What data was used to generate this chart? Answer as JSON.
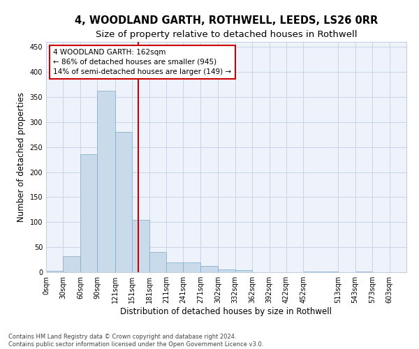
{
  "title": "4, WOODLAND GARTH, ROTHWELL, LEEDS, LS26 0RR",
  "subtitle": "Size of property relative to detached houses in Rothwell",
  "xlabel": "Distribution of detached houses by size in Rothwell",
  "ylabel": "Number of detached properties",
  "bar_color": "#c9daea",
  "bar_edge_color": "#7aaac8",
  "background_color": "#eef2fb",
  "grid_color": "#c5cfe0",
  "vline_x": 162,
  "vline_color": "#cc0000",
  "annotation_line1": "4 WOODLAND GARTH: 162sqm",
  "annotation_line2": "← 86% of detached houses are smaller (945)",
  "annotation_line3": "14% of semi-detached houses are larger (149) →",
  "annotation_box_color": "#cc0000",
  "bins_left": [
    0,
    30,
    60,
    90,
    121,
    151,
    181,
    211,
    241,
    271,
    302,
    332,
    362,
    392,
    422,
    452,
    513,
    543,
    573
  ],
  "bins_right": [
    30,
    60,
    90,
    121,
    151,
    181,
    211,
    241,
    271,
    302,
    332,
    362,
    392,
    422,
    452,
    513,
    543,
    573,
    603
  ],
  "bar_heights": [
    3,
    32,
    235,
    363,
    280,
    105,
    40,
    19,
    19,
    13,
    6,
    4,
    0,
    0,
    0,
    1,
    0,
    1,
    0
  ],
  "xlim": [
    0,
    633
  ],
  "ylim": [
    0,
    460
  ],
  "yticks": [
    0,
    50,
    100,
    150,
    200,
    250,
    300,
    350,
    400,
    450
  ],
  "xtick_labels": [
    "0sqm",
    "30sqm",
    "60sqm",
    "90sqm",
    "121sqm",
    "151sqm",
    "181sqm",
    "211sqm",
    "241sqm",
    "271sqm",
    "302sqm",
    "332sqm",
    "362sqm",
    "392sqm",
    "422sqm",
    "452sqm",
    "513sqm",
    "543sqm",
    "573sqm",
    "603sqm"
  ],
  "xtick_positions": [
    0,
    30,
    60,
    90,
    121,
    151,
    181,
    211,
    241,
    271,
    302,
    332,
    362,
    392,
    422,
    452,
    513,
    543,
    573,
    603
  ],
  "footer": "Contains HM Land Registry data © Crown copyright and database right 2024.\nContains public sector information licensed under the Open Government Licence v3.0.",
  "title_fontsize": 10.5,
  "subtitle_fontsize": 9.5,
  "tick_fontsize": 7,
  "ylabel_fontsize": 8.5,
  "xlabel_fontsize": 8.5,
  "footer_fontsize": 6
}
